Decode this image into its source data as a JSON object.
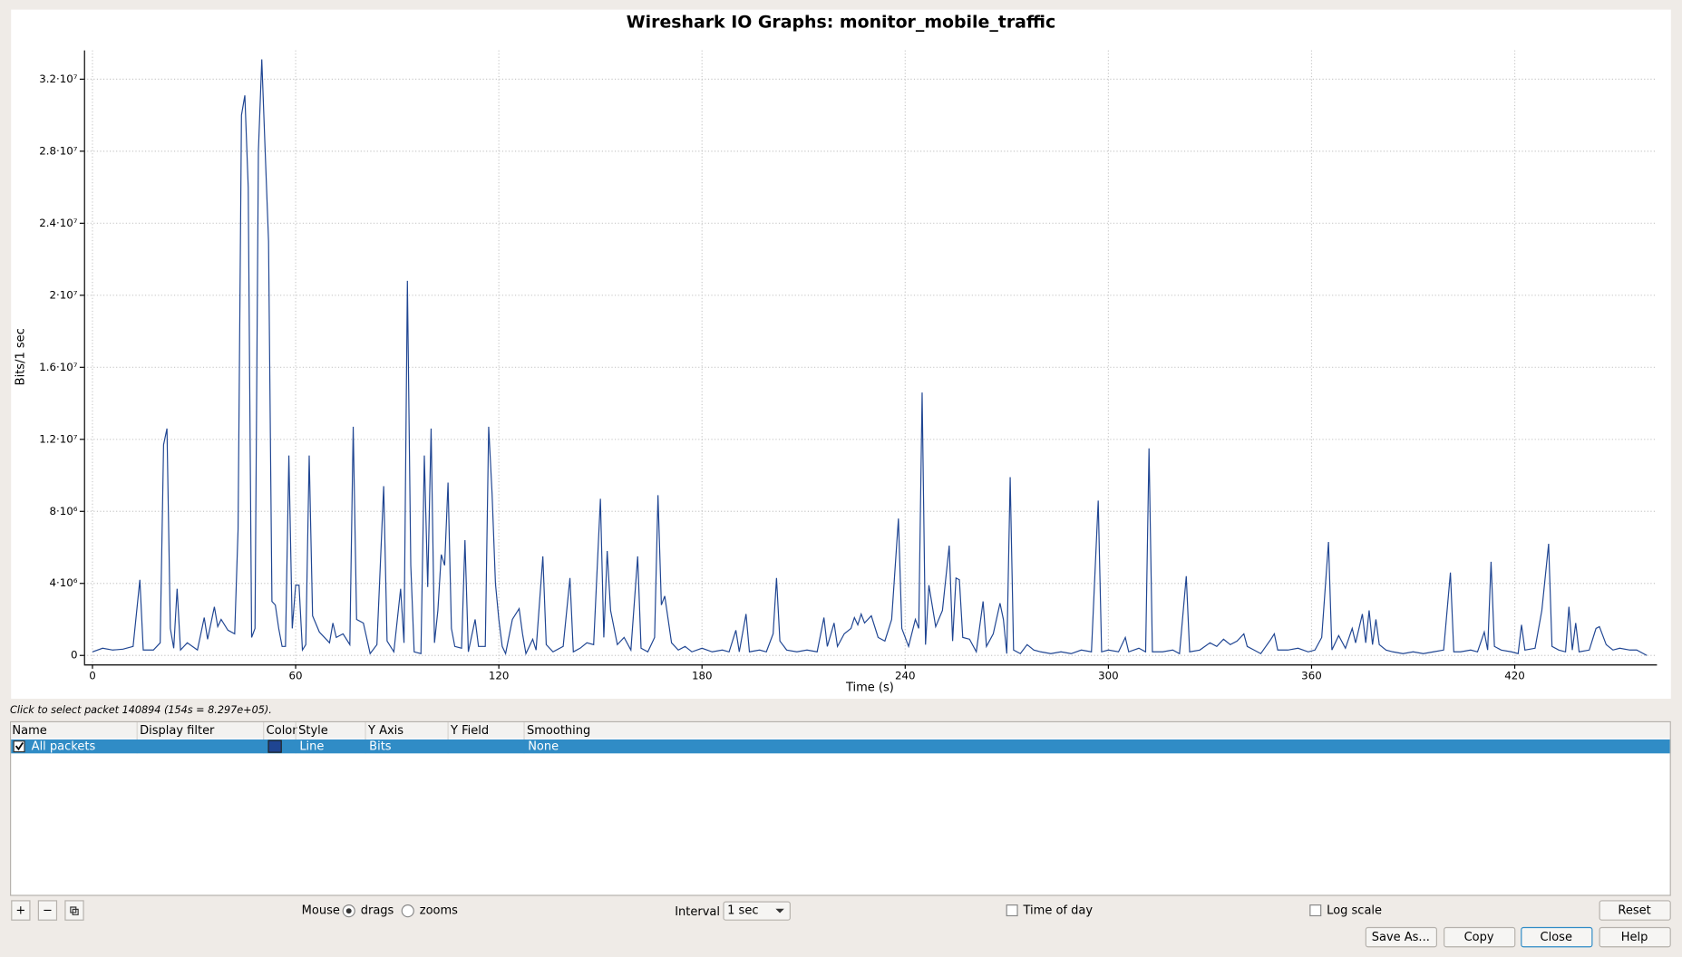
{
  "chart_data": {
    "type": "line",
    "title": "Wireshark IO Graphs: monitor_mobile_traffic",
    "xlabel": "Time (s)",
    "ylabel": "Bits/1 sec",
    "x": [
      0,
      3,
      6,
      9,
      12,
      14,
      15,
      18,
      20,
      21,
      22,
      23,
      24,
      25,
      26,
      28,
      31,
      33,
      34,
      36,
      37,
      38,
      40,
      42,
      43,
      44,
      45,
      46,
      47,
      48,
      49,
      50,
      51,
      52,
      53,
      54,
      55,
      56,
      57,
      58,
      59,
      60,
      61,
      62,
      63,
      64,
      65,
      67,
      70,
      71,
      72,
      74,
      76,
      77,
      78,
      80,
      82,
      84,
      86,
      87,
      89,
      91,
      92,
      93,
      94,
      95,
      97,
      98,
      99,
      100,
      101,
      102,
      103,
      104,
      105,
      106,
      107,
      109,
      110,
      111,
      113,
      114,
      116,
      117,
      118,
      119,
      120,
      121,
      122,
      124,
      126,
      127,
      128,
      130,
      131,
      133,
      134,
      136,
      139,
      141,
      142,
      144,
      146,
      148,
      150,
      151,
      152,
      153,
      155,
      157,
      159,
      161,
      162,
      164,
      166,
      167,
      168,
      169,
      171,
      173,
      175,
      177,
      180,
      183,
      186,
      188,
      190,
      191,
      193,
      194,
      197,
      199,
      201,
      202,
      203,
      205,
      208,
      211,
      214,
      216,
      217,
      219,
      220,
      222,
      224,
      225,
      226,
      227,
      228,
      230,
      232,
      234,
      236,
      238,
      239,
      241,
      243,
      244,
      245,
      246,
      247,
      249,
      251,
      253,
      254,
      255,
      256,
      257,
      259,
      261,
      263,
      264,
      266,
      268,
      269,
      270,
      271,
      272,
      274,
      276,
      278,
      280,
      283,
      286,
      289,
      292,
      295,
      297,
      298,
      300,
      303,
      305,
      306,
      309,
      311,
      312,
      313,
      316,
      319,
      321,
      323,
      324,
      327,
      330,
      332,
      334,
      336,
      338,
      340,
      341,
      343,
      345,
      348,
      349,
      350,
      353,
      356,
      359,
      361,
      363,
      365,
      366,
      368,
      370,
      372,
      373,
      375,
      376,
      377,
      378,
      379,
      380,
      382,
      384,
      387,
      390,
      393,
      396,
      399,
      401,
      402,
      404,
      407,
      409,
      411,
      412,
      413,
      414,
      416,
      419,
      421,
      422,
      423,
      426,
      428,
      430,
      431,
      433,
      435,
      436,
      437,
      438,
      439,
      442,
      444,
      445,
      447,
      449,
      451,
      454,
      456,
      458,
      459
    ],
    "series": [
      {
        "name": "All packets",
        "color": "#1f4592",
        "values": [
          200000,
          400000,
          300000,
          350000,
          500000,
          4200000,
          300000,
          300000,
          700000,
          11700000,
          12600000,
          1500000,
          400000,
          3700000,
          300000,
          700000,
          300000,
          2100000,
          900000,
          2700000,
          1600000,
          2000000,
          1400000,
          1200000,
          7000000,
          30000000,
          31100000,
          26000000,
          1000000,
          1500000,
          28000000,
          33100000,
          28000000,
          23000000,
          3000000,
          2800000,
          1500000,
          500000,
          500000,
          11100000,
          1500000,
          3900000,
          3900000,
          300000,
          600000,
          11100000,
          2200000,
          1300000,
          700000,
          1800000,
          1000000,
          1200000,
          600000,
          12700000,
          2000000,
          1800000,
          100000,
          600000,
          9400000,
          800000,
          200000,
          3700000,
          700000,
          20800000,
          5000000,
          200000,
          100000,
          11100000,
          3800000,
          12600000,
          700000,
          2500000,
          5600000,
          5000000,
          9600000,
          1500000,
          500000,
          400000,
          6400000,
          200000,
          2000000,
          500000,
          500000,
          12700000,
          9000000,
          4000000,
          2000000,
          500000,
          100000,
          2000000,
          2600000,
          1200000,
          100000,
          900000,
          300000,
          5500000,
          600000,
          200000,
          500000,
          4300000,
          200000,
          400000,
          700000,
          600000,
          8700000,
          1000000,
          5800000,
          2500000,
          600000,
          1000000,
          300000,
          5500000,
          400000,
          200000,
          1000000,
          8900000,
          2800000,
          3300000,
          700000,
          300000,
          500000,
          200000,
          400000,
          200000,
          300000,
          200000,
          1400000,
          200000,
          2300000,
          200000,
          300000,
          200000,
          1200000,
          4300000,
          800000,
          300000,
          200000,
          300000,
          200000,
          2100000,
          500000,
          1800000,
          500000,
          1200000,
          1500000,
          2100000,
          1700000,
          2300000,
          1800000,
          2200000,
          1000000,
          800000,
          2000000,
          7600000,
          1500000,
          500000,
          2000000,
          1500000,
          14600000,
          600000,
          3900000,
          1600000,
          2500000,
          6100000,
          800000,
          4300000,
          4200000,
          1000000,
          900000,
          200000,
          3000000,
          500000,
          1200000,
          2900000,
          2000000,
          100000,
          9900000,
          300000,
          100000,
          600000,
          300000,
          200000,
          100000,
          200000,
          100000,
          300000,
          200000,
          8600000,
          200000,
          300000,
          200000,
          1000000,
          200000,
          400000,
          200000,
          11500000,
          200000,
          200000,
          300000,
          100000,
          4400000,
          200000,
          300000,
          700000,
          500000,
          900000,
          600000,
          800000,
          1200000,
          500000,
          300000,
          100000,
          900000,
          1200000,
          300000,
          300000,
          400000,
          200000,
          300000,
          1000000,
          6300000,
          300000,
          1100000,
          400000,
          1500000,
          700000,
          2300000,
          700000,
          2500000,
          600000,
          2000000,
          600000,
          300000,
          200000,
          100000,
          200000,
          100000,
          200000,
          300000,
          4600000,
          200000,
          200000,
          300000,
          200000,
          1300000,
          300000,
          5200000,
          500000,
          300000,
          200000,
          100000,
          1700000,
          300000,
          400000,
          2500000,
          6200000,
          500000,
          300000,
          200000,
          2700000,
          300000,
          1800000,
          200000,
          300000,
          1500000,
          1600000,
          600000,
          300000,
          400000,
          300000,
          300000,
          100000,
          0
        ]
      }
    ],
    "xlim": [
      -2.5,
      462
    ],
    "ylim": [
      -500000,
      33600000
    ],
    "xticks": [
      0,
      60,
      120,
      180,
      240,
      300,
      360,
      420
    ],
    "yticks": [
      0,
      {
        "value": 4000000,
        "label": "4·10⁶"
      },
      {
        "value": 8000000,
        "label": "8·10⁶"
      },
      {
        "value": 12000000,
        "label": "1.2·10⁷"
      },
      {
        "value": 16000000,
        "label": "1.6·10⁷"
      },
      {
        "value": 20000000,
        "label": "2·10⁷"
      },
      {
        "value": 24000000,
        "label": "2.4·10⁷"
      },
      {
        "value": 28000000,
        "label": "2.8·10⁷"
      },
      {
        "value": 32000000,
        "label": "3.2·10⁷"
      }
    ],
    "grid": true,
    "log_scale": false
  },
  "ui": {
    "status": "Click to select packet 140894 (154s = 8.297e+05).",
    "columns": [
      "Name",
      "Display filter",
      "Color",
      "Style",
      "Y Axis",
      "Y Field",
      "Smoothing"
    ],
    "row": {
      "style": "Line",
      "y_axis": "Bits",
      "smoothing": "None"
    },
    "add": "+",
    "remove": "−",
    "mouse": "Mouse",
    "drags": "drags",
    "zooms": "zooms",
    "interval_label": "Interval",
    "interval": "1 sec",
    "time_of_day": "Time of day",
    "log_scale": "Log scale",
    "buttons": {
      "reset": "Reset",
      "save_as": "Save As...",
      "copy": "Copy",
      "close": "Close",
      "help": "Help"
    }
  }
}
